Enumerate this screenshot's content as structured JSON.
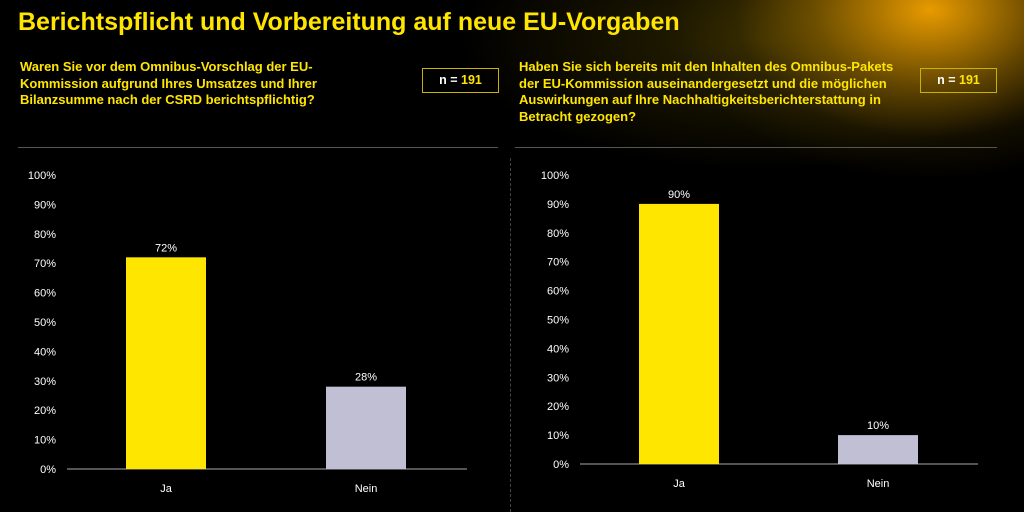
{
  "title": "Berichtspflicht und Vorbereitung auf neue EU-Vorgaben",
  "colors": {
    "ja": "#ffe600",
    "nein": "#c0bfd4",
    "accent": "#ffe600"
  },
  "chart_data": [
    {
      "type": "bar",
      "title": "Waren Sie vor dem Omnibus-Vorschlag der EU-Kommission aufgrund Ihres Umsatzes und Ihrer Bilanzsumme nach der CSRD berichtspflichtig?",
      "n_prefix": "n = ",
      "n_value": "191",
      "categories": [
        "Ja",
        "Nein"
      ],
      "values": [
        72,
        28
      ],
      "labels": [
        "72%",
        "28%"
      ],
      "yticks": [
        "0%",
        "10%",
        "20%",
        "30%",
        "40%",
        "50%",
        "60%",
        "70%",
        "80%",
        "90%",
        "100%"
      ],
      "ylim": [
        0,
        100
      ]
    },
    {
      "type": "bar",
      "title": "Haben Sie sich bereits mit den Inhalten des Omnibus-Pakets der EU-Kommission auseinandergesetzt und die möglichen Auswirkungen auf Ihre Nachhaltigkeitsberichterstattung in Betracht gezogen?",
      "n_prefix": "n = ",
      "n_value": "191",
      "categories": [
        "Ja",
        "Nein"
      ],
      "values": [
        90,
        10
      ],
      "labels": [
        "90%",
        "10%"
      ],
      "yticks": [
        "0%",
        "10%",
        "20%",
        "30%",
        "40%",
        "50%",
        "60%",
        "70%",
        "80%",
        "90%",
        "100%"
      ],
      "ylim": [
        0,
        100
      ]
    }
  ]
}
